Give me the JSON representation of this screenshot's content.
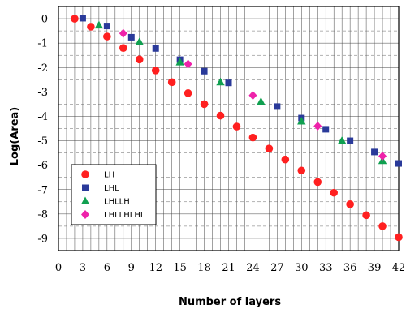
{
  "chart_data": {
    "type": "scatter",
    "xlabel": "Number of layers",
    "ylabel": "Log(Area)",
    "xlim": [
      0,
      42
    ],
    "ylim": [
      -9.5,
      0.5
    ],
    "x_ticks": [
      0,
      3,
      6,
      9,
      12,
      15,
      18,
      21,
      24,
      27,
      30,
      33,
      36,
      39,
      42
    ],
    "y_ticks": [
      0,
      -1,
      -2,
      -3,
      -4,
      -5,
      -6,
      -7,
      -8,
      -9
    ],
    "grid": true,
    "legend_position": "bottom-left",
    "series": [
      {
        "name": "LH",
        "marker": "circle",
        "color": "#ff2020",
        "points": [
          [
            2,
            0.0
          ],
          [
            4,
            -0.33
          ],
          [
            6,
            -0.73
          ],
          [
            8,
            -1.2
          ],
          [
            10,
            -1.67
          ],
          [
            12,
            -2.12
          ],
          [
            14,
            -2.6
          ],
          [
            16,
            -3.05
          ],
          [
            18,
            -3.5
          ],
          [
            20,
            -3.97
          ],
          [
            22,
            -4.42
          ],
          [
            24,
            -4.87
          ],
          [
            26,
            -5.32
          ],
          [
            28,
            -5.77
          ],
          [
            30,
            -6.22
          ],
          [
            32,
            -6.69
          ],
          [
            34,
            -7.13
          ],
          [
            36,
            -7.6
          ],
          [
            38,
            -8.05
          ],
          [
            40,
            -8.5
          ],
          [
            42,
            -8.95
          ]
        ]
      },
      {
        "name": "LHL",
        "marker": "square",
        "color": "#2a3a9a",
        "points": [
          [
            3,
            0.02
          ],
          [
            6,
            -0.3
          ],
          [
            9,
            -0.76
          ],
          [
            12,
            -1.22
          ],
          [
            15,
            -1.68
          ],
          [
            18,
            -2.15
          ],
          [
            21,
            -2.63
          ],
          [
            27,
            -3.6
          ],
          [
            30,
            -4.07
          ],
          [
            33,
            -4.53
          ],
          [
            36,
            -5.0
          ],
          [
            39,
            -5.46
          ],
          [
            42,
            -5.93
          ]
        ]
      },
      {
        "name": "LHLLH",
        "marker": "triangle",
        "color": "#10a050",
        "points": [
          [
            5,
            -0.27
          ],
          [
            10,
            -0.95
          ],
          [
            15,
            -1.78
          ],
          [
            20,
            -2.6
          ],
          [
            25,
            -3.4
          ],
          [
            30,
            -4.2
          ],
          [
            35,
            -5.0
          ],
          [
            40,
            -5.82
          ]
        ]
      },
      {
        "name": "LHLLHLHL",
        "marker": "diamond",
        "color": "#ee22aa",
        "points": [
          [
            8,
            -0.6
          ],
          [
            16,
            -1.86
          ],
          [
            24,
            -3.14
          ],
          [
            32,
            -4.4
          ],
          [
            40,
            -5.63
          ]
        ]
      }
    ]
  }
}
